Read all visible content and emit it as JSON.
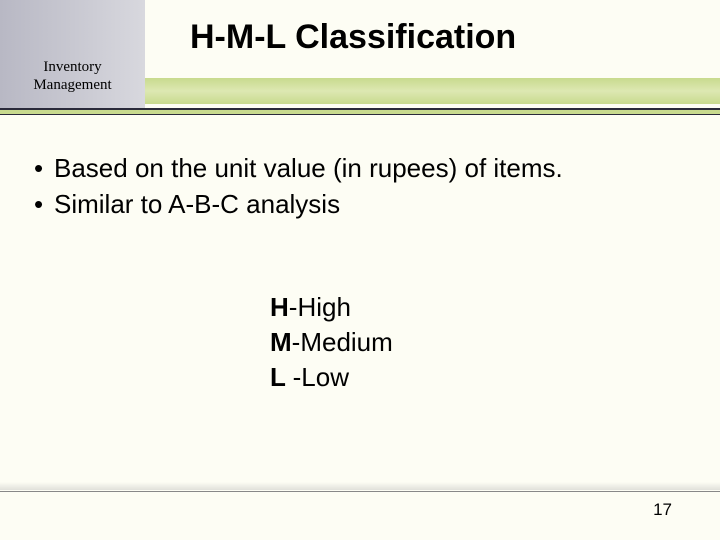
{
  "header": {
    "left_label_line1": "Inventory",
    "left_label_line2": "Management",
    "title": "H-M-L Classification"
  },
  "bullets": [
    "Based on the unit value (in rupees) of items.",
    "Similar to A-B-C analysis"
  ],
  "definitions": [
    {
      "bold": "H",
      "rest": "-High"
    },
    {
      "bold": "M",
      "rest": "-Medium"
    },
    {
      "bold": "L ",
      "rest": "-Low"
    }
  ],
  "page_number": "17",
  "colors": {
    "background": "#fdfdf4",
    "green_band": "#c8da8e",
    "left_block_start": "#b8b8c4",
    "left_block_end": "#d8d8de",
    "dark_line": "#2a2a3a"
  }
}
